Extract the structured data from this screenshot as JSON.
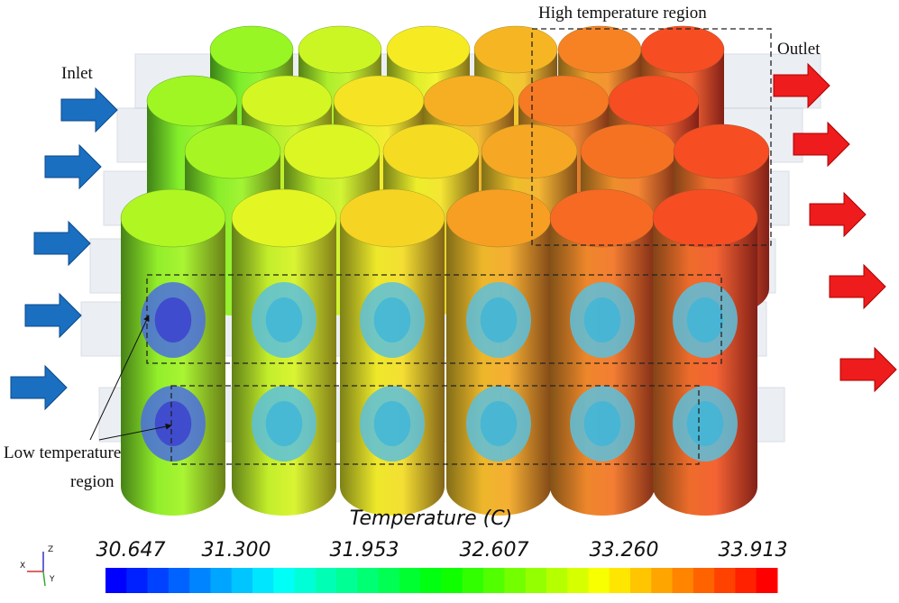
{
  "annotations": {
    "high": "High temperature region",
    "inlet": "Inlet",
    "outlet": "Outlet",
    "low_line1": "Low temperature",
    "low_line2": "region"
  },
  "colorbar": {
    "title": "Temperature (C)",
    "ticks": [
      "30.647",
      "31.300",
      "31.953",
      "32.607",
      "33.260",
      "33.913"
    ]
  },
  "triad": {
    "z": "Z",
    "x": "X",
    "y": "Y"
  }
}
